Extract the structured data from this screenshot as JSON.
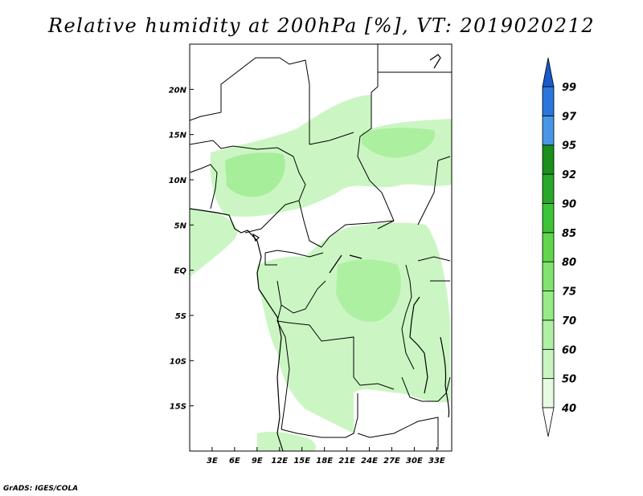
{
  "title": "Relative humidity at 200hPa [%], VT: 2019020212",
  "credit": "GrADS: IGES/COLA",
  "map": {
    "lon_range": [
      0,
      35
    ],
    "lat_range": [
      -20,
      25
    ],
    "lon_ticks": [
      {
        "value": 3,
        "label": "3E"
      },
      {
        "value": 6,
        "label": "6E"
      },
      {
        "value": 9,
        "label": "9E"
      },
      {
        "value": 12,
        "label": "12E"
      },
      {
        "value": 15,
        "label": "15E"
      },
      {
        "value": 18,
        "label": "18E"
      },
      {
        "value": 21,
        "label": "21E"
      },
      {
        "value": 24,
        "label": "24E"
      },
      {
        "value": 27,
        "label": "27E"
      },
      {
        "value": 30,
        "label": "30E"
      },
      {
        "value": 33,
        "label": "33E"
      }
    ],
    "lat_ticks": [
      {
        "value": 20,
        "label": "20N"
      },
      {
        "value": 15,
        "label": "15N"
      },
      {
        "value": 10,
        "label": "10N"
      },
      {
        "value": 5,
        "label": "5N"
      },
      {
        "value": 0,
        "label": "EQ"
      },
      {
        "value": -5,
        "label": "5S"
      },
      {
        "value": -10,
        "label": "10S"
      },
      {
        "value": -15,
        "label": "15S"
      }
    ]
  },
  "colorbar": {
    "levels": [
      "40",
      "50",
      "60",
      "70",
      "75",
      "80",
      "85",
      "90",
      "92",
      "95",
      "97",
      "99"
    ],
    "colors": [
      "#e6fae1",
      "#c8f5c0",
      "#aff0a4",
      "#96eb87",
      "#82e46e",
      "#5fd64b",
      "#3cc337",
      "#28a828",
      "#1a8f1a",
      "#4a96e6",
      "#2a76dc",
      "#1a5ac8"
    ],
    "below_color": "#ffffff",
    "above_color": "#1a5ac8"
  }
}
